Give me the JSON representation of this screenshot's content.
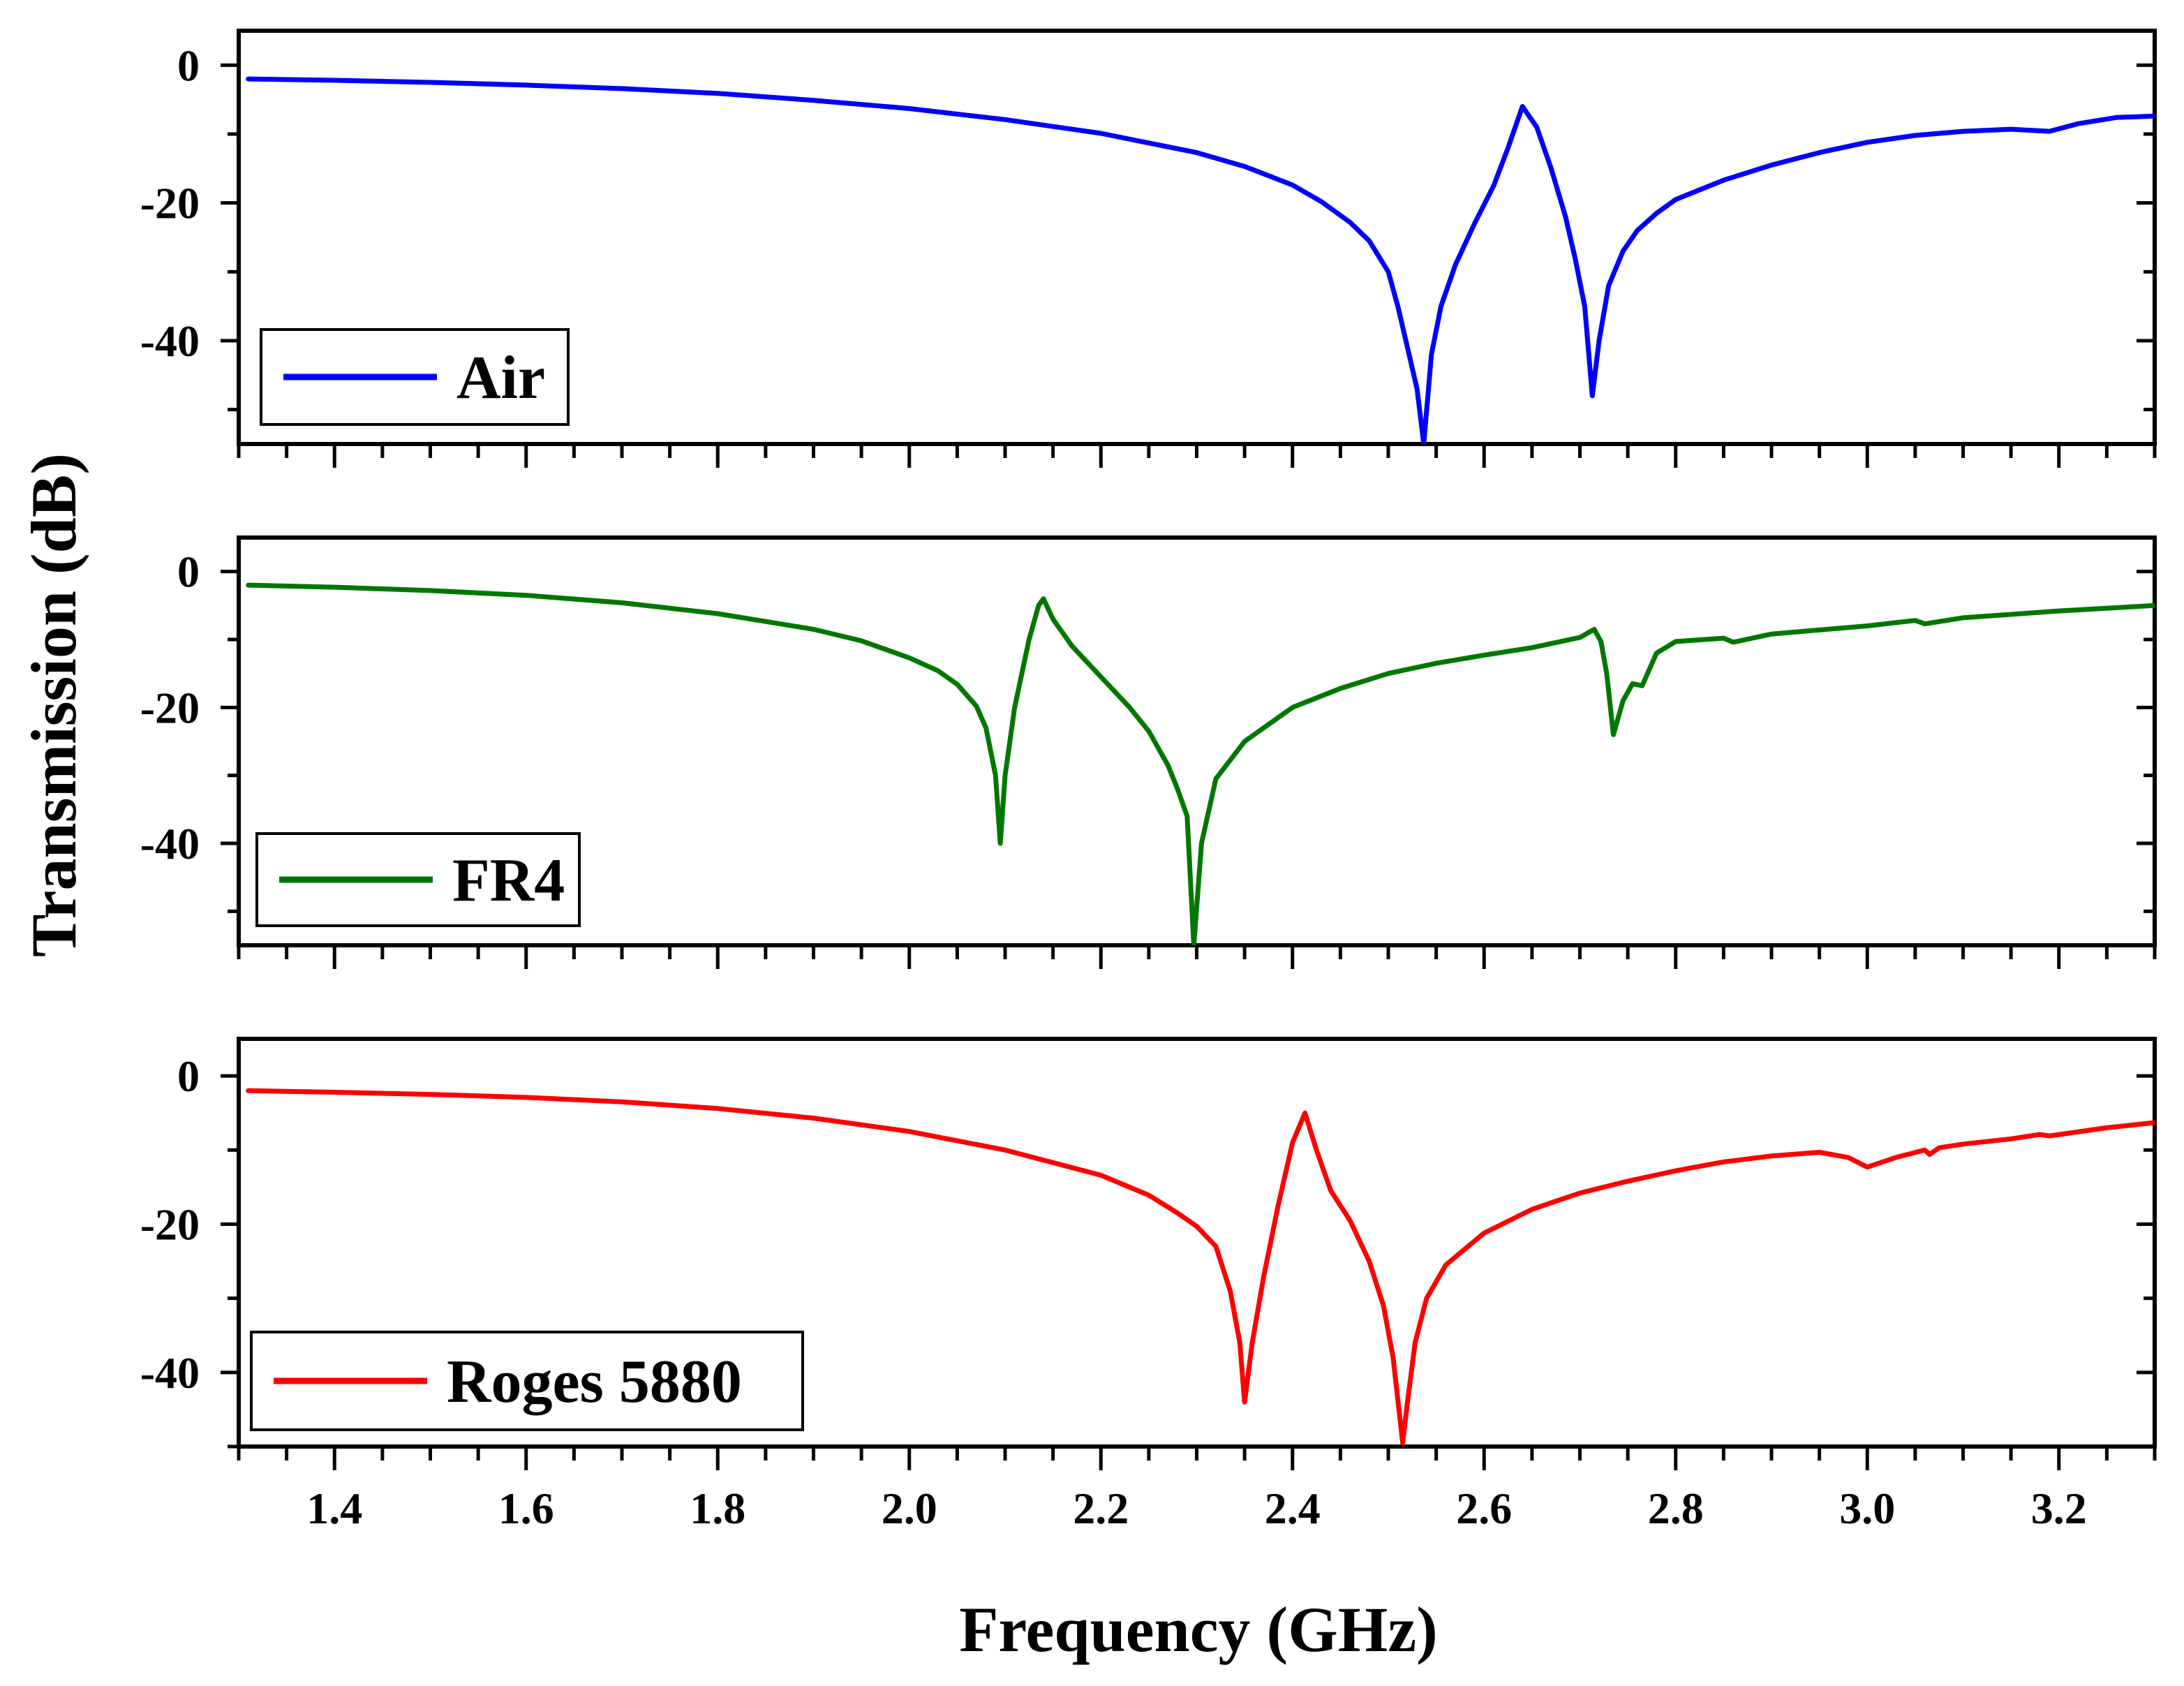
{
  "chart_data": {
    "type": "line",
    "ylabel": "Transmission (dB)",
    "xlabel": "Frequency (GHz)",
    "xlim": [
      1.3,
      3.3
    ],
    "xticks": [
      1.4,
      1.6,
      1.8,
      2.0,
      2.2,
      2.4,
      2.6,
      2.8,
      3.0,
      3.2
    ],
    "xtick_labels": [
      "1.4",
      "1.6",
      "1.8",
      "2.0",
      "2.2",
      "2.4",
      "2.6",
      "2.8",
      "3.0",
      "3.2"
    ],
    "grid": false,
    "panels": [
      {
        "name": "Air",
        "color": "#0000ff",
        "ylim": [
          -55,
          5
        ],
        "yticks": [
          0,
          -20,
          -40
        ],
        "ytick_labels": [
          "0",
          "-20",
          "-40"
        ],
        "legend_label": "Air",
        "legend_position": "bottom-left",
        "x": [
          1.31,
          1.4,
          1.5,
          1.6,
          1.7,
          1.8,
          1.9,
          2.0,
          2.1,
          2.2,
          2.3,
          2.35,
          2.4,
          2.43,
          2.46,
          2.48,
          2.5,
          2.51,
          2.52,
          2.53,
          2.537,
          2.545,
          2.555,
          2.57,
          2.59,
          2.61,
          2.625,
          2.64,
          2.655,
          2.67,
          2.685,
          2.695,
          2.705,
          2.713,
          2.72,
          2.73,
          2.745,
          2.76,
          2.78,
          2.8,
          2.85,
          2.9,
          2.95,
          3.0,
          3.05,
          3.1,
          3.15,
          3.19,
          3.22,
          3.26,
          3.3
        ],
        "y": [
          -2,
          -2.2,
          -2.5,
          -2.9,
          -3.4,
          -4.1,
          -5.1,
          -6.3,
          -7.9,
          -9.9,
          -12.7,
          -14.7,
          -17.4,
          -19.8,
          -22.8,
          -25.5,
          -30,
          -35,
          -41,
          -47,
          -55,
          -42,
          -35,
          -29,
          -23,
          -17.5,
          -12,
          -6,
          -9,
          -15,
          -22,
          -28,
          -35,
          -48,
          -40,
          -32,
          -27,
          -24,
          -21.5,
          -19.5,
          -16.7,
          -14.5,
          -12.7,
          -11.2,
          -10.2,
          -9.6,
          -9.3,
          -9.6,
          -8.5,
          -7.6,
          -7.4
        ]
      },
      {
        "name": "FR4",
        "color": "#007700",
        "ylim": [
          -55,
          5
        ],
        "yticks": [
          0,
          -20,
          -40
        ],
        "ytick_labels": [
          "0",
          "-20",
          "-40"
        ],
        "legend_label": "FR4",
        "legend_position": "bottom-left",
        "x": [
          1.31,
          1.4,
          1.5,
          1.6,
          1.7,
          1.8,
          1.9,
          1.95,
          2.0,
          2.03,
          2.05,
          2.07,
          2.08,
          2.09,
          2.095,
          2.1,
          2.11,
          2.125,
          2.135,
          2.14,
          2.15,
          2.17,
          2.2,
          2.23,
          2.25,
          2.27,
          2.28,
          2.29,
          2.297,
          2.305,
          2.32,
          2.35,
          2.4,
          2.45,
          2.5,
          2.55,
          2.6,
          2.65,
          2.7,
          2.715,
          2.722,
          2.728,
          2.735,
          2.745,
          2.755,
          2.765,
          2.78,
          2.8,
          2.85,
          2.86,
          2.9,
          3.0,
          3.05,
          3.06,
          3.1,
          3.2,
          3.3
        ],
        "y": [
          -2,
          -2.3,
          -2.8,
          -3.5,
          -4.6,
          -6.2,
          -8.5,
          -10.2,
          -12.7,
          -14.6,
          -16.6,
          -19.8,
          -23,
          -30,
          -40,
          -30,
          -20,
          -10,
          -5,
          -4,
          -7,
          -11,
          -15.5,
          -20,
          -23.5,
          -28.5,
          -32,
          -36,
          -55,
          -40,
          -30.5,
          -25,
          -20,
          -17.2,
          -15,
          -13.5,
          -12.3,
          -11.2,
          -9.7,
          -8.5,
          -10.3,
          -15,
          -24,
          -19,
          -16.5,
          -16.8,
          -12,
          -10.3,
          -9.8,
          -10.4,
          -9.2,
          -8,
          -7.2,
          -7.7,
          -6.8,
          -5.8,
          -5
        ]
      },
      {
        "name": "Roges 5880",
        "color": "#ff0000",
        "ylim": [
          -50,
          5
        ],
        "yticks": [
          0,
          -20,
          -40
        ],
        "ytick_labels": [
          "0",
          "-20",
          "-40"
        ],
        "legend_label": "Roges 5880",
        "legend_position": "bottom-left",
        "x": [
          1.31,
          1.4,
          1.5,
          1.6,
          1.7,
          1.8,
          1.9,
          2.0,
          2.1,
          2.2,
          2.25,
          2.28,
          2.3,
          2.32,
          2.335,
          2.345,
          2.35,
          2.358,
          2.37,
          2.385,
          2.4,
          2.413,
          2.425,
          2.44,
          2.46,
          2.48,
          2.495,
          2.505,
          2.515,
          2.52,
          2.528,
          2.54,
          2.56,
          2.6,
          2.65,
          2.7,
          2.75,
          2.8,
          2.85,
          2.9,
          2.95,
          2.98,
          3.0,
          3.03,
          3.06,
          3.065,
          3.075,
          3.1,
          3.15,
          3.18,
          3.19,
          3.25,
          3.3
        ],
        "y": [
          -2,
          -2.2,
          -2.5,
          -2.9,
          -3.5,
          -4.4,
          -5.7,
          -7.5,
          -10,
          -13.4,
          -16.1,
          -18.5,
          -20.3,
          -23,
          -29,
          -36,
          -44,
          -36,
          -27,
          -17.5,
          -9,
          -5,
          -10,
          -15.5,
          -19.5,
          -25,
          -31,
          -38,
          -49.5,
          -44,
          -36,
          -30,
          -25.5,
          -21.2,
          -18,
          -15.8,
          -14.2,
          -12.8,
          -11.6,
          -10.8,
          -10.3,
          -11,
          -12.3,
          -11,
          -10,
          -10.6,
          -9.7,
          -9.2,
          -8.5,
          -7.9,
          -8.1,
          -7,
          -6.3
        ]
      }
    ]
  }
}
